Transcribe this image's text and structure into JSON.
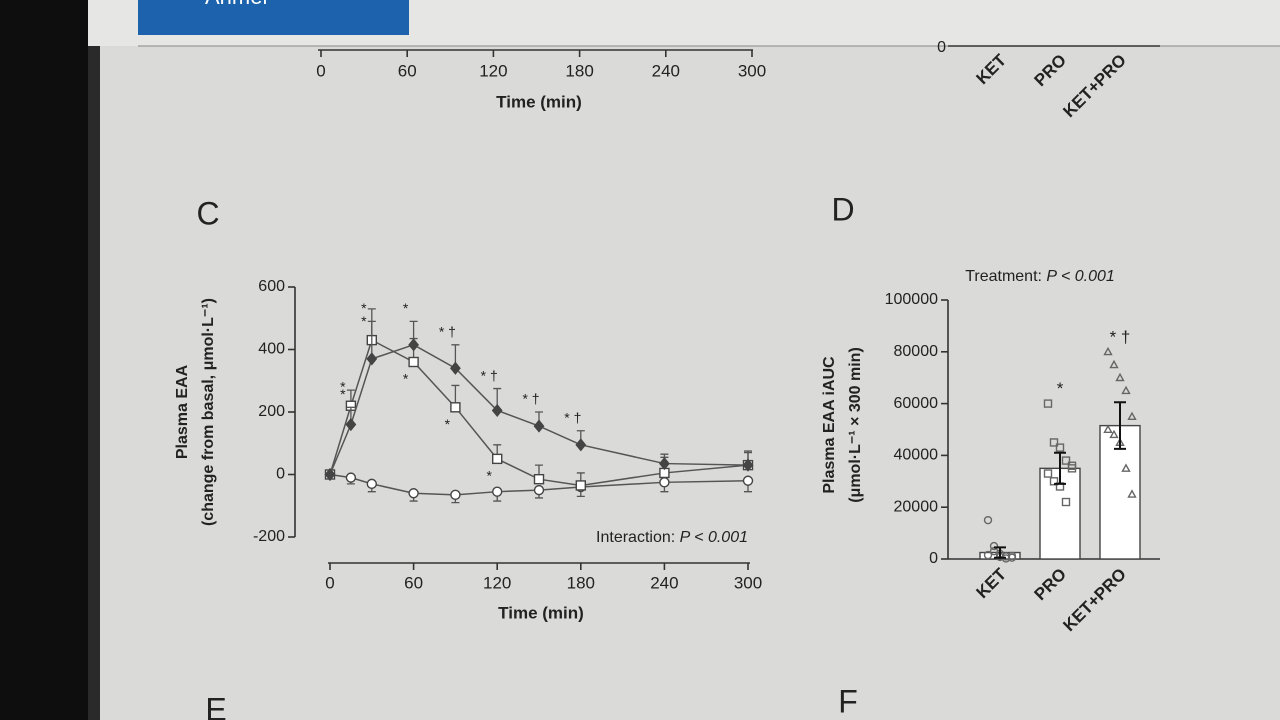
{
  "toolbar": {
    "button": "Anmel"
  },
  "fragment_top_left": {
    "xticks": [
      0,
      60,
      120,
      180,
      240,
      300
    ],
    "xlabel": "Time (min)"
  },
  "fragment_top_right": {
    "yticks": [
      0
    ],
    "categories": [
      "KET",
      "PRO",
      "KET+PRO"
    ]
  },
  "chart_data": [
    {
      "type": "line",
      "panel": "C",
      "ylabel": [
        "Plasma EAA",
        "(change from basal, μmol·L⁻¹)"
      ],
      "xlabel": "Time (min)",
      "stat": {
        "prefix": "Interaction:",
        "text": "P < 0.001"
      },
      "x": [
        0,
        15,
        30,
        60,
        90,
        120,
        150,
        180,
        240,
        300
      ],
      "xlim": [
        0,
        300
      ],
      "xticks": [
        0,
        60,
        120,
        180,
        240,
        300
      ],
      "ylim": [
        -200,
        600
      ],
      "yticks": [
        -200,
        0,
        200,
        400,
        600
      ],
      "series": [
        {
          "marker": "circle",
          "color": "#555555",
          "values": [
            0,
            -10,
            -30,
            -60,
            -65,
            -55,
            -50,
            -40,
            -25,
            -20
          ],
          "errors": [
            0,
            20,
            25,
            25,
            25,
            30,
            25,
            30,
            30,
            35
          ]
        },
        {
          "marker": "square",
          "color": "#555555",
          "values": [
            0,
            220,
            430,
            360,
            215,
            50,
            -15,
            -35,
            5,
            30
          ],
          "errors": [
            0,
            50,
            100,
            75,
            70,
            45,
            45,
            40,
            50,
            45
          ]
        },
        {
          "marker": "diamond",
          "color": "#555555",
          "values": [
            0,
            160,
            370,
            415,
            340,
            205,
            155,
            95,
            35,
            30
          ],
          "errors": [
            0,
            55,
            120,
            75,
            75,
            70,
            45,
            45,
            30,
            40
          ]
        }
      ],
      "annotations": [
        {
          "series": 1,
          "point": 1,
          "text": "*"
        },
        {
          "series": 1,
          "point": 2,
          "text": "*"
        },
        {
          "series": 1,
          "point": 3,
          "text": "*"
        },
        {
          "series": 1,
          "point": 4,
          "text": "*"
        },
        {
          "series": 1,
          "point": 5,
          "text": "*"
        },
        {
          "series": 2,
          "point": 1,
          "text": "*"
        },
        {
          "series": 2,
          "point": 2,
          "text": "*"
        },
        {
          "series": 2,
          "point": 3,
          "text": "*"
        },
        {
          "series": 2,
          "point": 4,
          "text": "* †"
        },
        {
          "series": 2,
          "point": 5,
          "text": "* †"
        },
        {
          "series": 2,
          "point": 6,
          "text": "* †"
        },
        {
          "series": 2,
          "point": 7,
          "text": "* †"
        }
      ]
    },
    {
      "type": "bar",
      "panel": "D",
      "title": {
        "prefix": "Treatment:",
        "text": "P < 0.001"
      },
      "ylabel": [
        "Plasma EAA iAUC",
        "(μmol·L⁻¹ × 300 min)"
      ],
      "categories": [
        "KET",
        "PRO",
        "KET+PRO"
      ],
      "values": [
        2500,
        35000,
        51500
      ],
      "errors": [
        2000,
        6000,
        9000
      ],
      "markers": [
        "circle",
        "square",
        "triangle"
      ],
      "points": [
        [
          15000,
          5000,
          2000,
          1000,
          500,
          1500,
          3000,
          800,
          200,
          1200
        ],
        [
          60000,
          45000,
          43000,
          38000,
          35000,
          33000,
          30000,
          28000,
          22000,
          36000
        ],
        [
          80000,
          75000,
          70000,
          65000,
          55000,
          50000,
          48000,
          45000,
          35000,
          25000
        ]
      ],
      "annotations": [
        "",
        "*",
        "* †"
      ],
      "ylim": [
        0,
        100000
      ],
      "yticks": [
        0,
        20000,
        40000,
        60000,
        80000,
        100000
      ],
      "color": "#ffffff"
    }
  ],
  "panel_labels_bottom": [
    "E",
    "F"
  ]
}
